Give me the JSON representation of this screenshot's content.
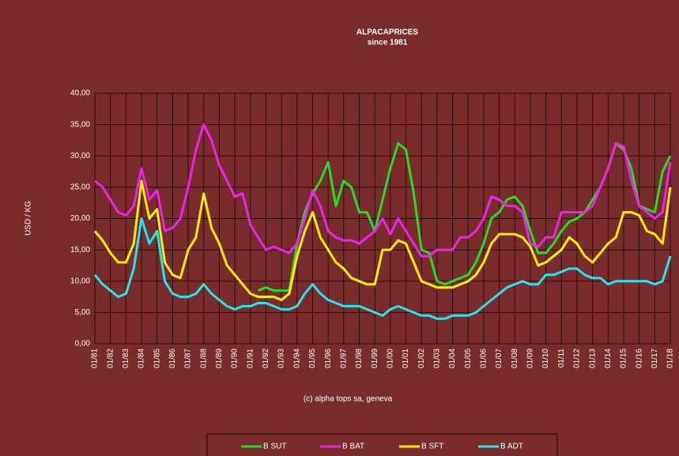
{
  "chart_data": {
    "type": "line",
    "title": "ALPACAPRICES",
    "subtitle": "since 1981",
    "y_label": "USD / KG",
    "annotation": "(c) alpha tops sa, geneva",
    "categories": [
      "01/81",
      null,
      "01/82",
      null,
      "01/83",
      null,
      "01/84",
      null,
      "01/85",
      null,
      "01/86",
      null,
      "01/87",
      null,
      "01/88",
      null,
      "01/89",
      null,
      "01/90",
      null,
      "01/91",
      null,
      "01/92",
      null,
      "01/93",
      null,
      "01/94",
      null,
      "01/95",
      null,
      "01/96",
      null,
      "01/97",
      null,
      "01/98",
      null,
      "01/99",
      null,
      "01/00",
      null,
      "01/01",
      null,
      "01/02",
      null,
      "01/03",
      null,
      "01/04",
      null,
      "01/05",
      null,
      "01/06",
      null,
      "01/07",
      null,
      "01/08",
      null,
      "01/09",
      null,
      "01/10",
      null,
      "01/11",
      null,
      "01/12",
      null,
      "01/13",
      null,
      "01/14",
      null,
      "01/15",
      null,
      "01/16",
      null,
      "01/17",
      null,
      "01/18"
    ],
    "series": [
      {
        "name": "B SUT",
        "color": "#22dd22",
        "values": [
          null,
          null,
          null,
          null,
          null,
          null,
          null,
          null,
          null,
          null,
          null,
          null,
          null,
          null,
          null,
          null,
          null,
          null,
          null,
          null,
          null,
          8.5,
          9,
          8.5,
          8.5,
          8.5,
          16,
          21,
          24,
          26,
          29,
          22,
          26,
          25,
          21,
          21,
          18,
          23,
          28,
          32,
          31,
          24,
          15,
          14.5,
          10,
          9.5,
          10,
          10.5,
          11,
          13,
          16,
          20,
          21,
          23,
          23.5,
          22,
          18,
          14.5,
          14.5,
          16,
          18,
          19.5,
          20,
          21,
          23,
          25,
          28,
          32,
          31,
          28,
          22,
          21.5,
          21,
          27.5,
          30
        ]
      },
      {
        "name": "B BAT",
        "color": "#ee22ee",
        "values": [
          26,
          25,
          23,
          21,
          20.5,
          22,
          28,
          23,
          24.5,
          18,
          18.5,
          20,
          25,
          31,
          35,
          32.5,
          28.5,
          26,
          23.5,
          24,
          19,
          17,
          15,
          15.5,
          15,
          14.5,
          16,
          20,
          24.5,
          22,
          18,
          17,
          16.5,
          16.5,
          16,
          17,
          18,
          20,
          17.5,
          20,
          18,
          16,
          14,
          14,
          15,
          15,
          15,
          17,
          17,
          18,
          20,
          23.5,
          23,
          22,
          22,
          21,
          16,
          15.5,
          17,
          17,
          21,
          21,
          21,
          21,
          22,
          25,
          28,
          32,
          31.5,
          26,
          22,
          21,
          20,
          21,
          29
        ]
      },
      {
        "name": "B SFT",
        "color": "#ffee00",
        "values": [
          18,
          16.5,
          14.5,
          13,
          13,
          16,
          26,
          20,
          21.5,
          13,
          11,
          10.5,
          15,
          17,
          24,
          18.5,
          16,
          12.5,
          11,
          9.5,
          8,
          7.5,
          7.5,
          7.5,
          7,
          8,
          14,
          18,
          21,
          17,
          15,
          13,
          12,
          10.5,
          10,
          9.5,
          9.5,
          15,
          15,
          16.5,
          16,
          13,
          10,
          9.5,
          9,
          9,
          9,
          9.5,
          10,
          11,
          13,
          16,
          17.5,
          17.5,
          17.5,
          17,
          15.5,
          12.5,
          13,
          14,
          15,
          17,
          16,
          14,
          13,
          14.5,
          16,
          17,
          21,
          21,
          20.5,
          18,
          17.5,
          16,
          25
        ]
      },
      {
        "name": "B ADT",
        "color": "#22e6ee",
        "values": [
          11,
          9.5,
          8.5,
          7.5,
          8,
          12,
          20,
          16,
          18,
          10,
          8,
          7.5,
          7.5,
          8,
          9.5,
          8,
          7,
          6,
          5.5,
          6,
          6,
          6.5,
          6.5,
          6,
          5.5,
          5.5,
          6,
          8,
          9.5,
          8,
          7,
          6.5,
          6,
          6,
          6,
          5.5,
          5,
          4.5,
          5.5,
          6,
          5.5,
          5,
          4.5,
          4.5,
          4,
          4,
          4.5,
          4.5,
          4.5,
          5,
          6,
          7,
          8,
          9,
          9.5,
          10,
          9.5,
          9.5,
          11,
          11,
          11.5,
          12,
          12,
          11,
          10.5,
          10.5,
          9.5,
          10,
          10,
          10,
          10,
          10,
          9.5,
          10,
          14
        ]
      }
    ],
    "ylim": [
      0,
      40
    ],
    "yticks": [
      {
        "value": 0,
        "label": "0,00"
      },
      {
        "value": 5,
        "label": "5,00"
      },
      {
        "value": 10,
        "label": "10,00"
      },
      {
        "value": 15,
        "label": "15,00"
      },
      {
        "value": 20,
        "label": "20,00"
      },
      {
        "value": 25,
        "label": "25,00"
      },
      {
        "value": 30,
        "label": "30,00"
      },
      {
        "value": 35,
        "label": "35,00"
      },
      {
        "value": 40,
        "label": "40,00"
      }
    ],
    "grid": true
  }
}
